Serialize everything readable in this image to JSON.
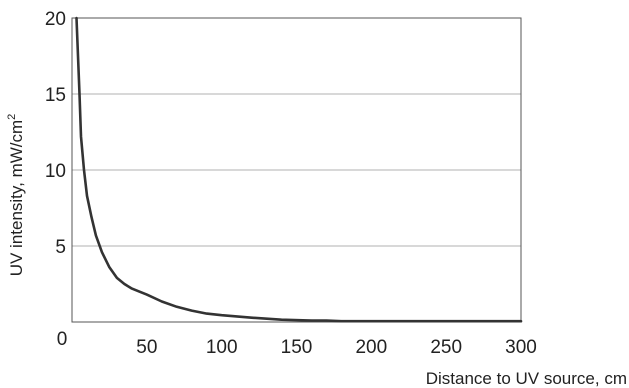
{
  "chart_data": {
    "type": "line",
    "title": "",
    "xlabel": "Distance to UV source, cm",
    "ylabel_main": "UV intensity, mW/cm",
    "ylabel_sup": "2",
    "xlim": [
      0,
      300
    ],
    "ylim": [
      0,
      20
    ],
    "grid": "horizontal",
    "x_ticks": [
      50,
      100,
      150,
      200,
      250,
      300
    ],
    "y_ticks": [
      5,
      10,
      15,
      20
    ],
    "origin_label": "0",
    "series": [
      {
        "x": [
          3,
          4,
          5,
          6,
          8,
          10,
          13,
          16,
          20,
          25,
          30,
          35,
          40,
          45,
          50,
          60,
          70,
          80,
          90,
          100,
          120,
          140,
          160,
          170,
          180,
          190,
          200,
          250,
          300
        ],
        "y": [
          20,
          17.5,
          15,
          12.2,
          10,
          8.3,
          6.9,
          5.7,
          4.6,
          3.6,
          2.9,
          2.5,
          2.2,
          2.0,
          1.8,
          1.35,
          1.0,
          0.75,
          0.55,
          0.45,
          0.28,
          0.15,
          0.1,
          0.1,
          0.05,
          0.05,
          0.05,
          0.05,
          0.05
        ]
      }
    ],
    "colors": {
      "line": "#333333",
      "grid": "#b0b0b0",
      "axis": "#555555"
    }
  }
}
